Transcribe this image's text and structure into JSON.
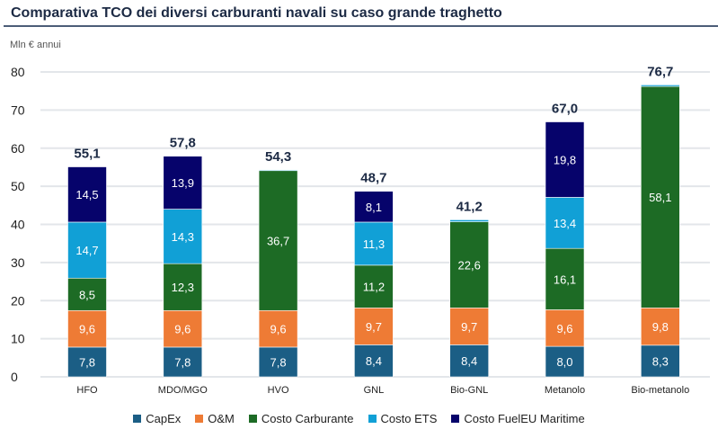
{
  "chart_data": {
    "type": "bar",
    "stacked": true,
    "title": "Comparativa TCO dei diversi carburanti navali su caso grande traghetto",
    "ylabel": "Mln € annui",
    "xlabel": "",
    "ylim": [
      0,
      80
    ],
    "yticks": [
      0,
      10,
      20,
      30,
      40,
      50,
      60,
      70,
      80
    ],
    "grid": true,
    "legend_position": "bottom",
    "categories": [
      "HFO",
      "MDO/MGO",
      "HVO",
      "GNL",
      "Bio-GNL",
      "Metanolo",
      "Bio-metanolo"
    ],
    "series": [
      {
        "name": "CapEx",
        "color": "#1b5e85",
        "values": [
          7.8,
          7.8,
          7.8,
          8.4,
          8.4,
          8.0,
          8.3
        ],
        "labels": [
          "7,8",
          "7,8",
          "7,8",
          "8,4",
          "8,4",
          "8,0",
          "8,3"
        ]
      },
      {
        "name": "O&M",
        "color": "#ee7b35",
        "values": [
          9.6,
          9.6,
          9.6,
          9.7,
          9.7,
          9.6,
          9.8
        ],
        "labels": [
          "9,6",
          "9,6",
          "9,6",
          "9,7",
          "9,7",
          "9,6",
          "9,8"
        ]
      },
      {
        "name": "Costo Carburante",
        "color": "#1d6b25",
        "values": [
          8.5,
          12.3,
          36.7,
          11.2,
          22.6,
          16.1,
          58.1
        ],
        "labels": [
          "8,5",
          "12,3",
          "36,7",
          "11,2",
          "22,6",
          "16,1",
          "58,1"
        ]
      },
      {
        "name": "Costo ETS",
        "color": "#11a0d6",
        "values": [
          14.7,
          14.3,
          0.2,
          11.3,
          0.5,
          13.4,
          0.4
        ],
        "labels": [
          "14,7",
          "14,3",
          "",
          "11,3",
          "",
          "13,4",
          ""
        ]
      },
      {
        "name": "Costo FuelEU Maritime",
        "color": "#06036b",
        "values": [
          14.5,
          13.9,
          0,
          8.1,
          0,
          19.8,
          0
        ],
        "labels": [
          "14,5",
          "13,9",
          "",
          "8,1",
          "",
          "19,8",
          ""
        ]
      }
    ],
    "totals": [
      "55,1",
      "57,8",
      "54,3",
      "48,7",
      "41,2",
      "67,0",
      "76,7"
    ]
  }
}
